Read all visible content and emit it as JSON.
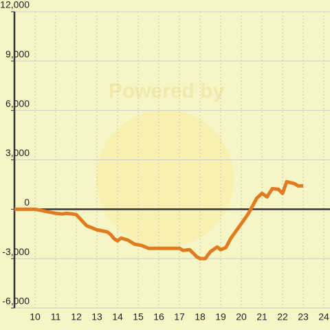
{
  "chart_data": {
    "type": "line",
    "watermark": "Powered by",
    "x": [
      9,
      10,
      10.5,
      11,
      11.33,
      11.5,
      11.83,
      12,
      12.5,
      13,
      13.5,
      13.67,
      13.83,
      14,
      14.17,
      14.5,
      14.83,
      15.17,
      15.5,
      17,
      17.17,
      17.5,
      17.83,
      18,
      18.25,
      18.5,
      18.83,
      19,
      19.25,
      19.5,
      20,
      20.33,
      20.75,
      21,
      21.25,
      21.5,
      21.8,
      22,
      22.2,
      22.6,
      22.75,
      23
    ],
    "series": [
      {
        "color": "#e07b20",
        "values": [
          0,
          0,
          -125,
          -250,
          -290,
          -250,
          -290,
          -330,
          -1000,
          -1250,
          -1375,
          -1540,
          -1790,
          -1920,
          -1750,
          -1875,
          -2125,
          -2200,
          -2375,
          -2375,
          -2500,
          -2460,
          -2875,
          -3000,
          -3000,
          -2580,
          -2290,
          -2460,
          -2330,
          -1750,
          -875,
          -290,
          670,
          960,
          750,
          1250,
          1210,
          960,
          1670,
          1540,
          1420,
          1420
        ]
      }
    ],
    "xlim": [
      9,
      24.3
    ],
    "xticks": [
      10,
      11,
      12,
      13,
      14,
      15,
      16,
      17,
      18,
      19,
      20,
      21,
      22,
      23,
      24
    ],
    "ylim": [
      -6000,
      12000
    ],
    "yticks": [
      {
        "value": -6000,
        "label": "-6,000"
      },
      {
        "value": -3000,
        "label": "-3,000"
      },
      0,
      {
        "value": 3000,
        "label": "3,000"
      },
      {
        "value": 6000,
        "label": "6,000"
      },
      {
        "value": 9000,
        "label": "9,000"
      },
      {
        "value": 12000,
        "label": "12,000"
      }
    ],
    "grid": true
  }
}
